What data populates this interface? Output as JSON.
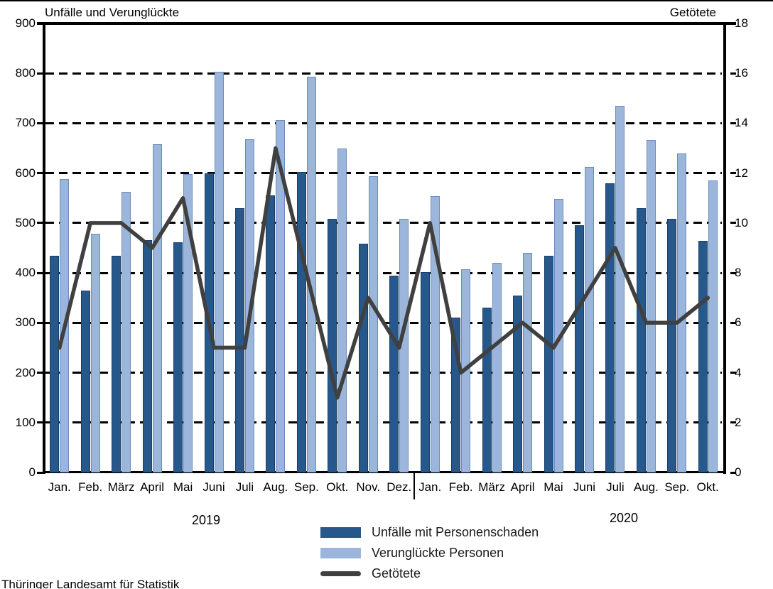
{
  "header": {
    "left_axis_title": "Unfälle und Verunglückte",
    "right_axis_title": "Getötete"
  },
  "chart_data": {
    "type": "bar",
    "subtype": "grouped bars with overlaid line (dual axis)",
    "categories": [
      "Jan.",
      "Feb.",
      "März",
      "April",
      "Mai",
      "Juni",
      "Juli",
      "Aug.",
      "Sep.",
      "Okt.",
      "Nov.",
      "Dez.",
      "Jan.",
      "Feb.",
      "März",
      "April",
      "Mai",
      "Juni",
      "Juli",
      "Aug.",
      "Sep.",
      "Okt."
    ],
    "year_groups": [
      {
        "label": "2019",
        "months": 12
      },
      {
        "label": "2020",
        "months": 10
      }
    ],
    "series": [
      {
        "name": "Unfälle mit Personenschaden",
        "type": "bar",
        "axis": "left",
        "color": "#26588C",
        "values": [
          435,
          365,
          435,
          465,
          462,
          600,
          530,
          556,
          603,
          508,
          459,
          395,
          402,
          310,
          330,
          354,
          435,
          495,
          580,
          530,
          509,
          464
        ]
      },
      {
        "name": "Verunglückte Personen",
        "type": "bar",
        "axis": "left",
        "color": "#9BB6DA",
        "values": [
          588,
          478,
          562,
          658,
          598,
          803,
          668,
          707,
          793,
          650,
          594,
          509,
          554,
          407,
          420,
          440,
          548,
          613,
          735,
          667,
          640,
          586
        ]
      },
      {
        "name": "Getötete",
        "type": "line",
        "axis": "right",
        "color": "#404040",
        "values": [
          5,
          10,
          10,
          9,
          11,
          5,
          5,
          13,
          8,
          3,
          7,
          5,
          10,
          4,
          5,
          6,
          5,
          7,
          9,
          6,
          6,
          7
        ]
      }
    ],
    "left_axis": {
      "title": "Unfälle und Verunglückte",
      "min": 0,
      "max": 900,
      "step": 100,
      "ticks": [
        "0",
        "100",
        "200",
        "300",
        "400",
        "500",
        "600",
        "700",
        "800",
        "900"
      ]
    },
    "right_axis": {
      "title": "Getötete",
      "min": 0,
      "max": 18,
      "step": 2,
      "ticks": [
        "0",
        "2",
        "4",
        "6",
        "8",
        "10",
        "12",
        "14",
        "16",
        "18"
      ]
    },
    "grid": "dashed horizontal gridlines, solid plot frame left/right/top/bottom",
    "legend_position": "bottom center"
  },
  "legend": {
    "items": [
      {
        "label": "Unfälle mit Personenschaden",
        "swatch": "dark-blue-bar"
      },
      {
        "label": "Verunglückte Personen",
        "swatch": "light-blue-bar"
      },
      {
        "label": "Getötete",
        "swatch": "dark-gray-line"
      }
    ]
  },
  "footer": {
    "source": "Thüringer Landesamt für Statistik"
  }
}
